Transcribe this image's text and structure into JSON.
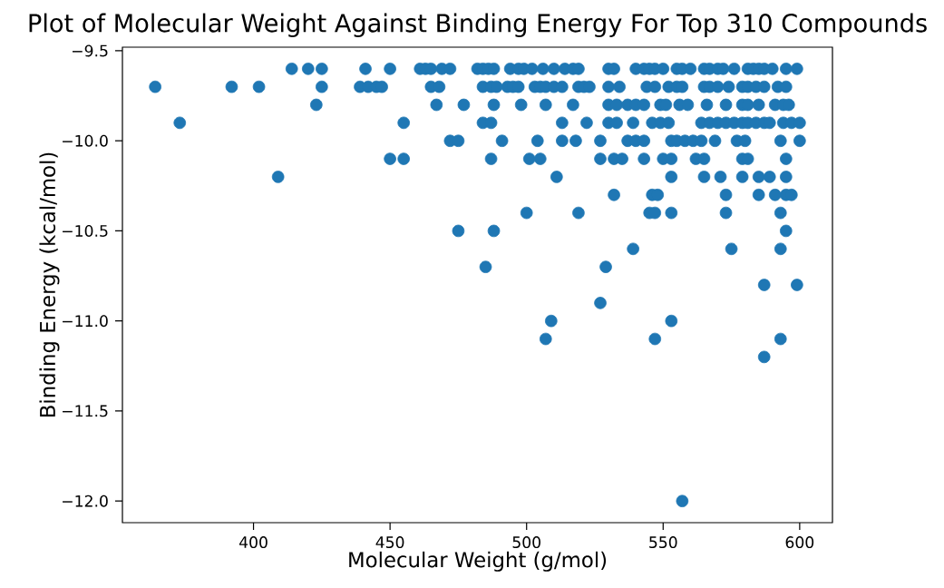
{
  "chart_data": {
    "type": "scatter",
    "title": "Plot of Molecular Weight Against Binding Energy For Top 310 Compounds",
    "xlabel": "Molecular Weight (g/mol)",
    "ylabel": "Binding Energy (kcal/mol)",
    "marker": "circle",
    "xlim": [
      352,
      612
    ],
    "ylim": [
      -12.12,
      -9.48
    ],
    "xticks": [
      400,
      450,
      500,
      550,
      600
    ],
    "yticks": [
      {
        "value": -12.0,
        "label": "−12.0"
      },
      {
        "value": -11.5,
        "label": "−11.5"
      },
      {
        "value": -11.0,
        "label": "−11.0"
      },
      {
        "value": -10.5,
        "label": "−10.5"
      },
      {
        "value": -10.0,
        "label": "−10.0"
      },
      {
        "value": -9.5,
        "label": "−9.5"
      }
    ],
    "series": [
      {
        "color": "#1f77b4",
        "x": [
          414,
          420,
          425,
          441,
          450,
          461,
          463,
          465,
          469,
          472,
          482,
          484,
          486,
          488,
          494,
          497,
          499,
          502,
          506,
          510,
          514,
          517,
          519,
          530,
          532,
          540,
          543,
          545,
          547,
          550,
          555,
          557,
          560,
          565,
          567,
          570,
          572,
          576,
          581,
          583,
          585,
          587,
          590,
          595,
          599,
          364,
          392,
          402,
          425,
          439,
          442,
          445,
          447,
          465,
          468,
          484,
          487,
          489,
          493,
          495,
          497,
          503,
          505,
          507,
          510,
          513,
          519,
          521,
          523,
          530,
          534,
          544,
          547,
          552,
          555,
          557,
          565,
          567,
          570,
          574,
          579,
          581,
          584,
          587,
          592,
          595,
          423,
          467,
          477,
          488,
          498,
          507,
          517,
          530,
          533,
          537,
          540,
          543,
          549,
          551,
          556,
          559,
          566,
          573,
          579,
          581,
          585,
          591,
          594,
          596,
          373,
          455,
          484,
          487,
          513,
          522,
          530,
          533,
          539,
          546,
          549,
          552,
          564,
          567,
          570,
          573,
          576,
          579,
          581,
          584,
          587,
          589,
          594,
          597,
          600,
          472,
          475,
          491,
          504,
          513,
          518,
          527,
          537,
          540,
          543,
          553,
          555,
          558,
          561,
          564,
          569,
          577,
          580,
          593,
          600,
          450,
          455,
          487,
          501,
          505,
          527,
          532,
          535,
          543,
          550,
          553,
          562,
          565,
          579,
          581,
          595,
          409,
          511,
          553,
          565,
          571,
          579,
          585,
          589,
          595,
          532,
          546,
          548,
          573,
          585,
          591,
          595,
          597,
          500,
          519,
          545,
          547,
          553,
          573,
          593,
          475,
          488,
          595,
          539,
          575,
          593,
          485,
          529,
          587,
          599,
          527,
          509,
          553,
          507,
          547,
          593,
          587,
          557
        ],
        "values": [
          -9.6,
          -9.6,
          -9.6,
          -9.6,
          -9.6,
          -9.6,
          -9.6,
          -9.6,
          -9.6,
          -9.6,
          -9.6,
          -9.6,
          -9.6,
          -9.6,
          -9.6,
          -9.6,
          -9.6,
          -9.6,
          -9.6,
          -9.6,
          -9.6,
          -9.6,
          -9.6,
          -9.6,
          -9.6,
          -9.6,
          -9.6,
          -9.6,
          -9.6,
          -9.6,
          -9.6,
          -9.6,
          -9.6,
          -9.6,
          -9.6,
          -9.6,
          -9.6,
          -9.6,
          -9.6,
          -9.6,
          -9.6,
          -9.6,
          -9.6,
          -9.6,
          -9.6,
          -9.7,
          -9.7,
          -9.7,
          -9.7,
          -9.7,
          -9.7,
          -9.7,
          -9.7,
          -9.7,
          -9.7,
          -9.7,
          -9.7,
          -9.7,
          -9.7,
          -9.7,
          -9.7,
          -9.7,
          -9.7,
          -9.7,
          -9.7,
          -9.7,
          -9.7,
          -9.7,
          -9.7,
          -9.7,
          -9.7,
          -9.7,
          -9.7,
          -9.7,
          -9.7,
          -9.7,
          -9.7,
          -9.7,
          -9.7,
          -9.7,
          -9.7,
          -9.7,
          -9.7,
          -9.7,
          -9.7,
          -9.7,
          -9.8,
          -9.8,
          -9.8,
          -9.8,
          -9.8,
          -9.8,
          -9.8,
          -9.8,
          -9.8,
          -9.8,
          -9.8,
          -9.8,
          -9.8,
          -9.8,
          -9.8,
          -9.8,
          -9.8,
          -9.8,
          -9.8,
          -9.8,
          -9.8,
          -9.8,
          -9.8,
          -9.8,
          -9.9,
          -9.9,
          -9.9,
          -9.9,
          -9.9,
          -9.9,
          -9.9,
          -9.9,
          -9.9,
          -9.9,
          -9.9,
          -9.9,
          -9.9,
          -9.9,
          -9.9,
          -9.9,
          -9.9,
          -9.9,
          -9.9,
          -9.9,
          -9.9,
          -9.9,
          -9.9,
          -9.9,
          -9.9,
          -10.0,
          -10.0,
          -10.0,
          -10.0,
          -10.0,
          -10.0,
          -10.0,
          -10.0,
          -10.0,
          -10.0,
          -10.0,
          -10.0,
          -10.0,
          -10.0,
          -10.0,
          -10.0,
          -10.0,
          -10.0,
          -10.0,
          -10.0,
          -10.1,
          -10.1,
          -10.1,
          -10.1,
          -10.1,
          -10.1,
          -10.1,
          -10.1,
          -10.1,
          -10.1,
          -10.1,
          -10.1,
          -10.1,
          -10.1,
          -10.1,
          -10.1,
          -10.2,
          -10.2,
          -10.2,
          -10.2,
          -10.2,
          -10.2,
          -10.2,
          -10.2,
          -10.2,
          -10.3,
          -10.3,
          -10.3,
          -10.3,
          -10.3,
          -10.3,
          -10.3,
          -10.3,
          -10.4,
          -10.4,
          -10.4,
          -10.4,
          -10.4,
          -10.4,
          -10.4,
          -10.5,
          -10.5,
          -10.5,
          -10.6,
          -10.6,
          -10.6,
          -10.7,
          -10.7,
          -10.8,
          -10.8,
          -10.9,
          -11.0,
          -11.0,
          -11.1,
          -11.1,
          -11.1,
          -11.2,
          -12.0
        ]
      }
    ]
  }
}
